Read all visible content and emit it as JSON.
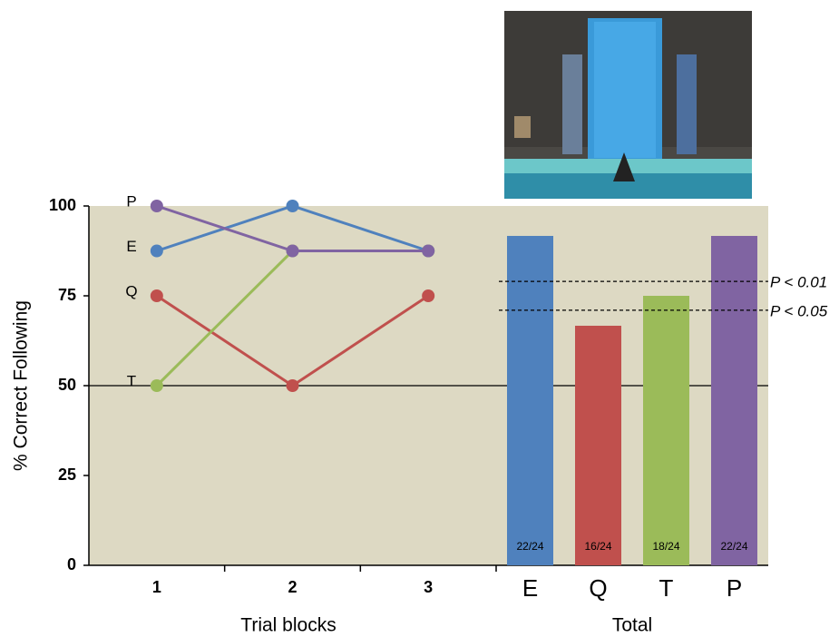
{
  "chart_data": [
    {
      "type": "line",
      "y_label": "% Correct Following",
      "x_label": "Trial blocks",
      "categories": [
        "1",
        "2",
        "3"
      ],
      "series": [
        {
          "name": "E",
          "color": "#4f81bd",
          "values": [
            87.5,
            100,
            87.5
          ]
        },
        {
          "name": "Q",
          "color": "#c0504d",
          "values": [
            75,
            50,
            75
          ]
        },
        {
          "name": "T",
          "color": "#9bbb59",
          "values": [
            50,
            87.5,
            87.5
          ]
        },
        {
          "name": "P",
          "color": "#8064a2",
          "values": [
            100,
            87.5,
            87.5
          ]
        }
      ],
      "ylim": [
        0,
        100
      ],
      "yticks": [
        0,
        25,
        50,
        75,
        100
      ],
      "chance_line": 50
    },
    {
      "type": "bar",
      "x_label": "Total",
      "categories": [
        "E",
        "Q",
        "T",
        "P"
      ],
      "values": [
        91.67,
        66.67,
        75,
        91.67
      ],
      "value_labels": [
        "22/24",
        "16/24",
        "18/24",
        "22/24"
      ],
      "colors": [
        "#4f81bd",
        "#c0504d",
        "#9bbb59",
        "#8064a2"
      ],
      "ylim": [
        0,
        100
      ],
      "reference_lines": [
        {
          "value": 79,
          "label": "P < 0.01"
        },
        {
          "value": 71,
          "label": "P < 0.05"
        }
      ]
    }
  ]
}
